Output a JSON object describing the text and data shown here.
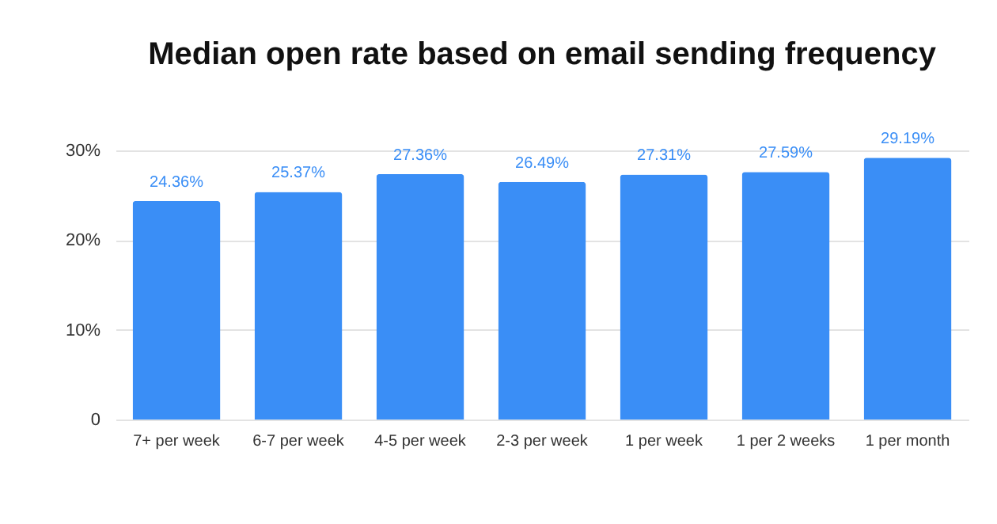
{
  "chart_data": {
    "type": "bar",
    "title": "Median open rate based on email sending frequency",
    "categories": [
      "7+ per week",
      "6-7 per week",
      "4-5 per week",
      "2-3 per week",
      "1 per week",
      "1 per 2 weeks",
      "1 per month"
    ],
    "values": [
      24.36,
      25.37,
      27.36,
      26.49,
      27.31,
      27.59,
      29.19
    ],
    "value_labels": [
      "24.36%",
      "25.37%",
      "27.36%",
      "26.49%",
      "27.31%",
      "27.59%",
      "29.19%"
    ],
    "color": "#3a8ef6",
    "ylim": [
      0,
      30
    ],
    "yticks": [
      0,
      {
        "value": 10,
        "label": "10%"
      },
      {
        "value": 20,
        "label": "20%"
      },
      {
        "value": 30,
        "label": "30%"
      }
    ],
    "grid": "y"
  }
}
